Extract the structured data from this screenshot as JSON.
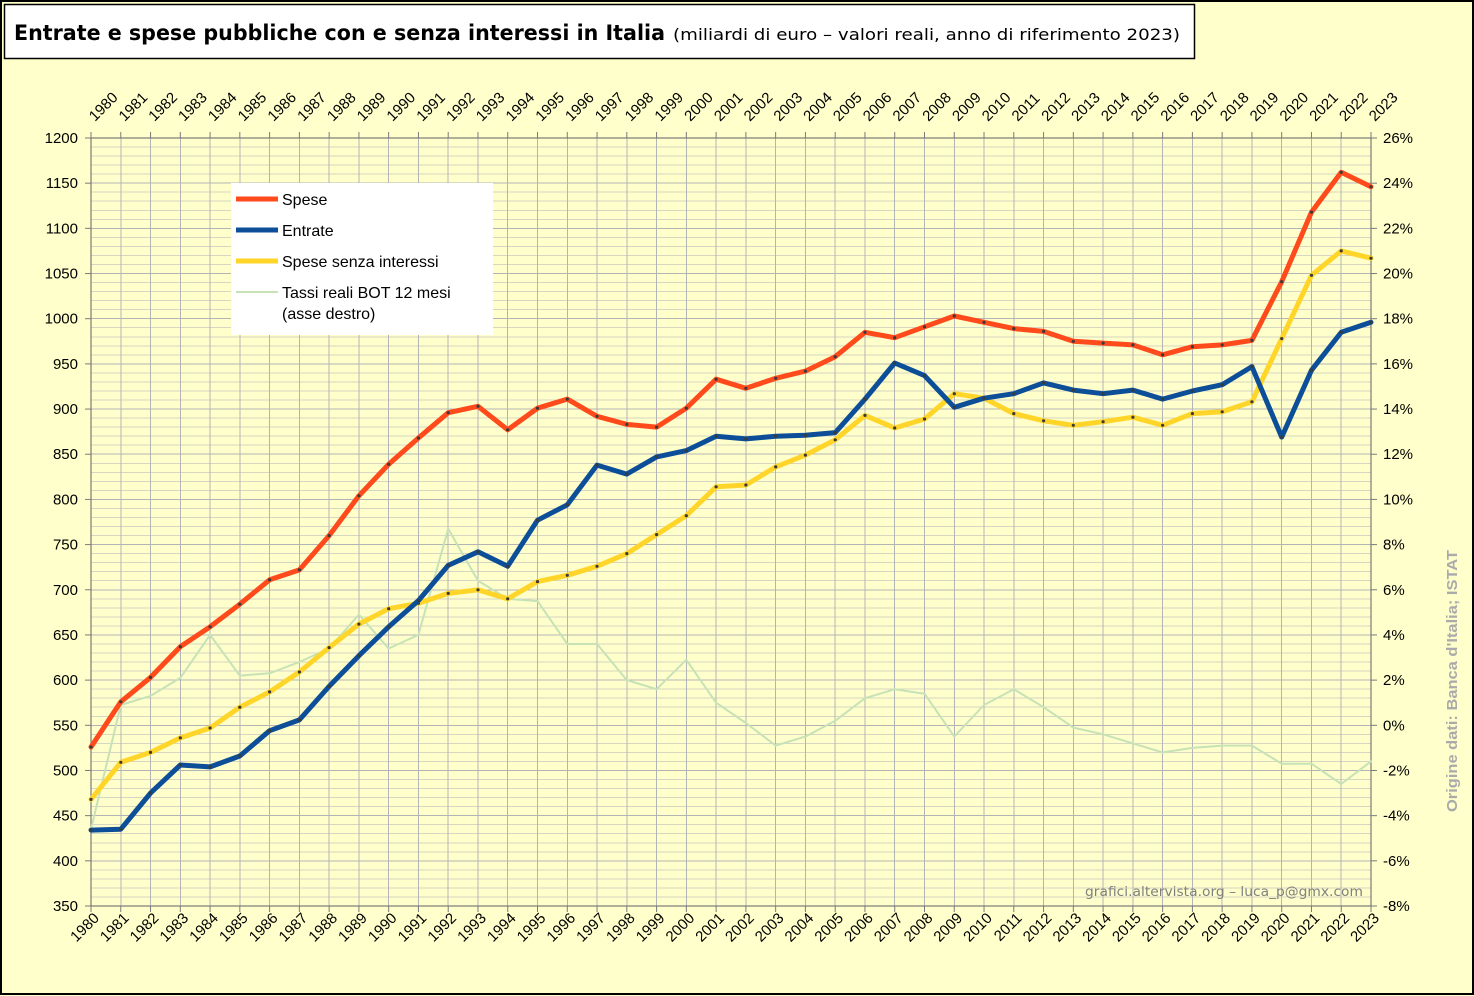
{
  "chart_data": {
    "type": "line",
    "title": "Entrate e spese pubbliche con e senza interessi in Italia",
    "subtitle": "(miliardi di euro – valori reali, anno di riferimento 2023)",
    "x": [
      1980,
      1981,
      1982,
      1983,
      1984,
      1985,
      1986,
      1987,
      1988,
      1989,
      1990,
      1991,
      1992,
      1993,
      1994,
      1995,
      1996,
      1997,
      1998,
      1999,
      2000,
      2001,
      2002,
      2003,
      2004,
      2005,
      2006,
      2007,
      2008,
      2009,
      2010,
      2011,
      2012,
      2013,
      2014,
      2015,
      2016,
      2017,
      2018,
      2019,
      2020,
      2021,
      2022,
      2023
    ],
    "ylim": [
      350,
      1200
    ],
    "yticks": [
      350,
      400,
      450,
      500,
      550,
      600,
      650,
      700,
      750,
      800,
      850,
      900,
      950,
      1000,
      1050,
      1100,
      1150,
      1200
    ],
    "y2lim": [
      -8,
      26
    ],
    "y2ticks": [
      "-8%",
      "-6%",
      "-4%",
      "-2%",
      "0%",
      "2%",
      "4%",
      "6%",
      "8%",
      "10%",
      "12%",
      "14%",
      "16%",
      "18%",
      "20%",
      "22%",
      "24%",
      "26%"
    ],
    "grid": true,
    "legend": "top-left",
    "series": [
      {
        "name": "Spese",
        "color": "#ff4a1c",
        "secondary_axis": false,
        "values": [
          526,
          576,
          603,
          637,
          659,
          684,
          711,
          722,
          760,
          804,
          839,
          868,
          896,
          903,
          877,
          901,
          911,
          892,
          883,
          880,
          901,
          933,
          923,
          934,
          942,
          958,
          985,
          979,
          991,
          1003,
          996,
          989,
          986,
          975,
          973,
          971,
          960,
          969,
          971,
          976,
          1041,
          1118,
          1162,
          1146
        ]
      },
      {
        "name": "Entrate",
        "color": "#0c4f98",
        "secondary_axis": false,
        "values": [
          434,
          435,
          475,
          506,
          504,
          516,
          544,
          556,
          593,
          627,
          659,
          688,
          727,
          742,
          726,
          777,
          794,
          838,
          828,
          847,
          854,
          870,
          867,
          870,
          871,
          874,
          911,
          951,
          937,
          902,
          912,
          917,
          929,
          921,
          917,
          921,
          911,
          920,
          927,
          947,
          869,
          943,
          985,
          996
        ]
      },
      {
        "name": "Spese senza interessi",
        "color": "#ffd52a",
        "secondary_axis": false,
        "values": [
          468,
          509,
          520,
          536,
          547,
          570,
          587,
          609,
          636,
          662,
          679,
          685,
          696,
          700,
          690,
          709,
          716,
          726,
          740,
          761,
          782,
          814,
          816,
          836,
          849,
          866,
          893,
          879,
          889,
          917,
          912,
          895,
          887,
          882,
          886,
          891,
          882,
          895,
          897,
          908,
          978,
          1048,
          1075,
          1067
        ]
      },
      {
        "name": "Tassi reali BOT 12 mesi",
        "legend_note": "(asse destro)",
        "color": "#c6e2b6",
        "secondary_axis": true,
        "values": [
          -4.6,
          0.9,
          1.3,
          2.1,
          4.0,
          2.2,
          2.3,
          2.8,
          3.4,
          4.9,
          3.4,
          4.0,
          8.7,
          6.4,
          5.6,
          5.5,
          3.6,
          3.6,
          2.0,
          1.6,
          2.9,
          1.0,
          0.1,
          -0.9,
          -0.5,
          0.2,
          1.2,
          1.6,
          1.4,
          -0.5,
          0.9,
          1.6,
          0.8,
          -0.1,
          -0.4,
          -0.8,
          -1.2,
          -1.0,
          -0.9,
          -0.9,
          -1.7,
          -1.7,
          -2.6,
          -1.6
        ]
      }
    ]
  },
  "watermark": "grafici.altervista.org – luca_p@gmx.com",
  "source_note": "Origine dati: Banca d'Italia; ISTAT",
  "colors": {
    "background": "#ffffcc",
    "title_box": "#ffffff",
    "legend_box": "#ffffff",
    "border": "#000000",
    "axis": "#7a7a7a",
    "grid_major": "#b4b4b4",
    "grid_minor": "#d6d6c2",
    "marker": "#3a3a3a"
  }
}
